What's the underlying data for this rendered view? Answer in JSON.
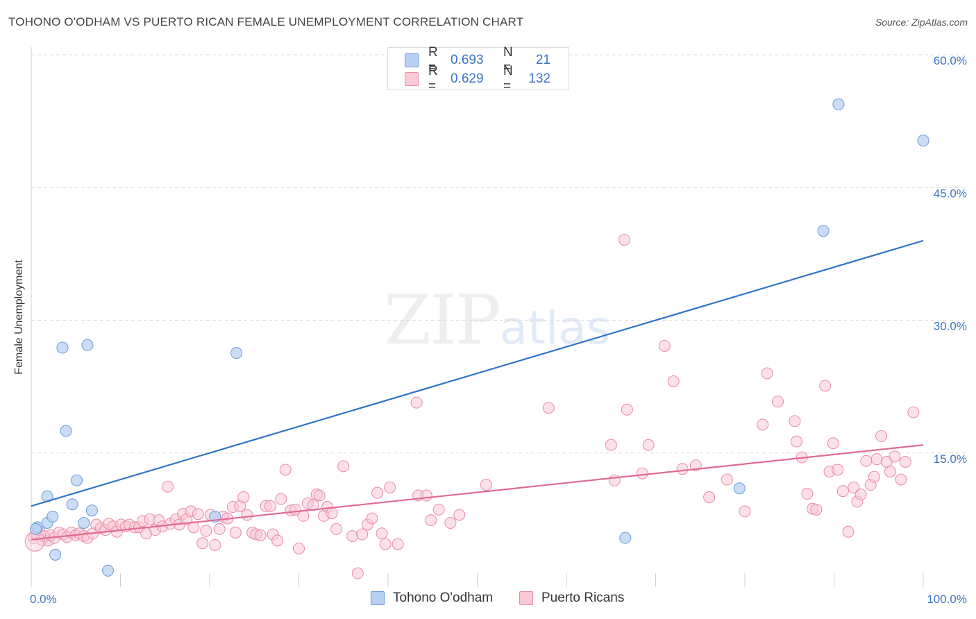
{
  "title": "TOHONO O'ODHAM VS PUERTO RICAN FEMALE UNEMPLOYMENT CORRELATION CHART",
  "source": "Source: ZipAtlas.com",
  "watermark": {
    "zip": "ZIP",
    "atlas": "atlas"
  },
  "legend": {
    "r_label": "R =",
    "n_label": "N =",
    "rows": [
      {
        "r": "0.693",
        "n": "21"
      },
      {
        "r": "0.629",
        "n": "132"
      }
    ]
  },
  "colors": {
    "blue_fill": "#b8d1f3",
    "blue_stroke": "#6b9ad8",
    "blue_line": "#2f72c8",
    "pink_fill": "#f9c9d6",
    "pink_stroke": "#e98aa8",
    "pink_line": "#e06a94",
    "grid": "#dcdcdc",
    "axis_text": "#3a74c9"
  },
  "chart_data": {
    "type": "scatter",
    "title": "TOHONO O'ODHAM VS PUERTO RICAN FEMALE UNEMPLOYMENT CORRELATION CHART",
    "xlabel": "",
    "ylabel": "Female Unemployment",
    "xlim": [
      0,
      100
    ],
    "ylim": [
      0,
      60
    ],
    "x_tick_labels": [
      {
        "value": 0,
        "label": "0.0%"
      },
      {
        "value": 100,
        "label": "100.0%"
      }
    ],
    "y_tick_labels": [
      {
        "value": 15,
        "label": "15.0%"
      },
      {
        "value": 30,
        "label": "30.0%"
      },
      {
        "value": 45,
        "label": "45.0%"
      },
      {
        "value": 60,
        "label": "60.0%"
      }
    ],
    "grid": true,
    "legend_position": "top-center",
    "series": [
      {
        "name": "Tohono O'odham",
        "color": "#b8d1f3",
        "points": [
          [
            0.7,
            6.6
          ],
          [
            1.8,
            7.1
          ],
          [
            1.8,
            10.1
          ],
          [
            2.4,
            7.8
          ],
          [
            2.7,
            3.5
          ],
          [
            3.5,
            26.9
          ],
          [
            3.9,
            17.5
          ],
          [
            4.6,
            9.2
          ],
          [
            5.1,
            11.9
          ],
          [
            5.9,
            7.1
          ],
          [
            6.3,
            27.2
          ],
          [
            6.8,
            8.5
          ],
          [
            8.6,
            1.7
          ],
          [
            20.6,
            7.8
          ],
          [
            23.0,
            26.3
          ],
          [
            66.6,
            5.4
          ],
          [
            79.4,
            11.0
          ],
          [
            88.8,
            40.1
          ],
          [
            90.5,
            54.4
          ],
          [
            100.0,
            50.3
          ],
          [
            0.5,
            6.4
          ]
        ],
        "trend": {
          "x": [
            0,
            100
          ],
          "y": [
            9.0,
            39.0
          ]
        }
      },
      {
        "name": "Puerto Ricans",
        "color": "#f9c9d6",
        "points": [
          [
            0.3,
            5.4
          ],
          [
            0.6,
            5.8
          ],
          [
            0.9,
            6.3
          ],
          [
            1.2,
            5.2
          ],
          [
            1.5,
            5.6
          ],
          [
            1.9,
            5.1
          ],
          [
            2.2,
            5.7
          ],
          [
            2.6,
            5.4
          ],
          [
            3.1,
            6.0
          ],
          [
            3.6,
            5.8
          ],
          [
            4.0,
            5.5
          ],
          [
            4.5,
            6.0
          ],
          [
            5.0,
            5.7
          ],
          [
            5.4,
            5.9
          ],
          [
            5.9,
            5.6
          ],
          [
            6.3,
            5.4
          ],
          [
            6.9,
            5.9
          ],
          [
            7.3,
            6.9
          ],
          [
            7.8,
            6.5
          ],
          [
            8.3,
            6.3
          ],
          [
            8.7,
            7.0
          ],
          [
            9.2,
            6.7
          ],
          [
            9.6,
            6.1
          ],
          [
            10.1,
            6.9
          ],
          [
            10.6,
            6.7
          ],
          [
            11.0,
            6.9
          ],
          [
            11.6,
            6.6
          ],
          [
            12.1,
            6.6
          ],
          [
            12.5,
            7.3
          ],
          [
            12.9,
            5.9
          ],
          [
            13.3,
            7.5
          ],
          [
            13.9,
            6.3
          ],
          [
            14.3,
            7.4
          ],
          [
            14.7,
            6.7
          ],
          [
            15.3,
            11.2
          ],
          [
            15.6,
            7.0
          ],
          [
            16.2,
            7.5
          ],
          [
            16.6,
            6.9
          ],
          [
            17.0,
            8.1
          ],
          [
            17.4,
            7.5
          ],
          [
            17.9,
            8.4
          ],
          [
            18.2,
            6.6
          ],
          [
            18.7,
            8.1
          ],
          [
            19.2,
            4.8
          ],
          [
            19.6,
            6.2
          ],
          [
            20.1,
            8.0
          ],
          [
            20.6,
            4.6
          ],
          [
            21.1,
            6.4
          ],
          [
            21.5,
            7.8
          ],
          [
            22.0,
            7.6
          ],
          [
            22.6,
            8.9
          ],
          [
            22.9,
            6.0
          ],
          [
            23.4,
            9.0
          ],
          [
            23.8,
            10.0
          ],
          [
            24.2,
            8.0
          ],
          [
            24.8,
            6.0
          ],
          [
            25.2,
            5.8
          ],
          [
            25.7,
            5.7
          ],
          [
            26.3,
            9.0
          ],
          [
            26.8,
            9.0
          ],
          [
            27.1,
            5.8
          ],
          [
            27.6,
            5.1
          ],
          [
            28.0,
            9.8
          ],
          [
            28.5,
            13.1
          ],
          [
            29.1,
            8.5
          ],
          [
            29.6,
            8.6
          ],
          [
            30.0,
            4.2
          ],
          [
            30.5,
            7.9
          ],
          [
            31.0,
            9.3
          ],
          [
            31.6,
            9.1
          ],
          [
            32.0,
            10.3
          ],
          [
            32.3,
            10.2
          ],
          [
            32.8,
            7.9
          ],
          [
            33.2,
            8.9
          ],
          [
            33.7,
            8.2
          ],
          [
            34.2,
            6.4
          ],
          [
            35.0,
            13.5
          ],
          [
            36.0,
            5.6
          ],
          [
            36.6,
            1.4
          ],
          [
            37.1,
            5.8
          ],
          [
            37.7,
            6.9
          ],
          [
            38.2,
            7.6
          ],
          [
            38.8,
            10.5
          ],
          [
            39.3,
            5.9
          ],
          [
            39.7,
            4.7
          ],
          [
            40.2,
            11.1
          ],
          [
            41.1,
            4.7
          ],
          [
            43.2,
            20.7
          ],
          [
            43.4,
            10.2
          ],
          [
            44.3,
            10.2
          ],
          [
            44.8,
            7.4
          ],
          [
            45.7,
            8.6
          ],
          [
            47.0,
            7.1
          ],
          [
            48.0,
            8.0
          ],
          [
            51.0,
            11.4
          ],
          [
            58.0,
            20.1
          ],
          [
            65.0,
            15.9
          ],
          [
            65.4,
            11.9
          ],
          [
            66.5,
            39.1
          ],
          [
            66.8,
            19.9
          ],
          [
            68.5,
            12.7
          ],
          [
            69.2,
            15.9
          ],
          [
            71.0,
            27.1
          ],
          [
            72.0,
            23.1
          ],
          [
            73.0,
            13.2
          ],
          [
            74.5,
            13.6
          ],
          [
            76.0,
            10.0
          ],
          [
            78.0,
            12.0
          ],
          [
            80.0,
            8.4
          ],
          [
            82.0,
            18.2
          ],
          [
            82.5,
            24.0
          ],
          [
            83.7,
            20.8
          ],
          [
            85.6,
            18.6
          ],
          [
            85.8,
            16.3
          ],
          [
            86.4,
            14.5
          ],
          [
            87.0,
            10.4
          ],
          [
            87.6,
            8.7
          ],
          [
            88.0,
            8.6
          ],
          [
            89.0,
            22.6
          ],
          [
            89.5,
            12.9
          ],
          [
            89.9,
            16.1
          ],
          [
            90.4,
            13.1
          ],
          [
            91.0,
            10.7
          ],
          [
            91.6,
            6.1
          ],
          [
            92.2,
            11.1
          ],
          [
            92.6,
            9.5
          ],
          [
            93.0,
            10.3
          ],
          [
            93.6,
            14.1
          ],
          [
            94.1,
            11.4
          ],
          [
            94.5,
            12.3
          ],
          [
            94.8,
            14.3
          ],
          [
            95.3,
            16.9
          ],
          [
            95.9,
            14.0
          ],
          [
            96.3,
            12.9
          ],
          [
            96.8,
            14.6
          ],
          [
            97.5,
            12.0
          ],
          [
            98.0,
            14.0
          ],
          [
            98.9,
            19.6
          ]
        ],
        "trend": {
          "x": [
            0,
            100
          ],
          "y": [
            5.2,
            15.9
          ]
        }
      }
    ]
  }
}
